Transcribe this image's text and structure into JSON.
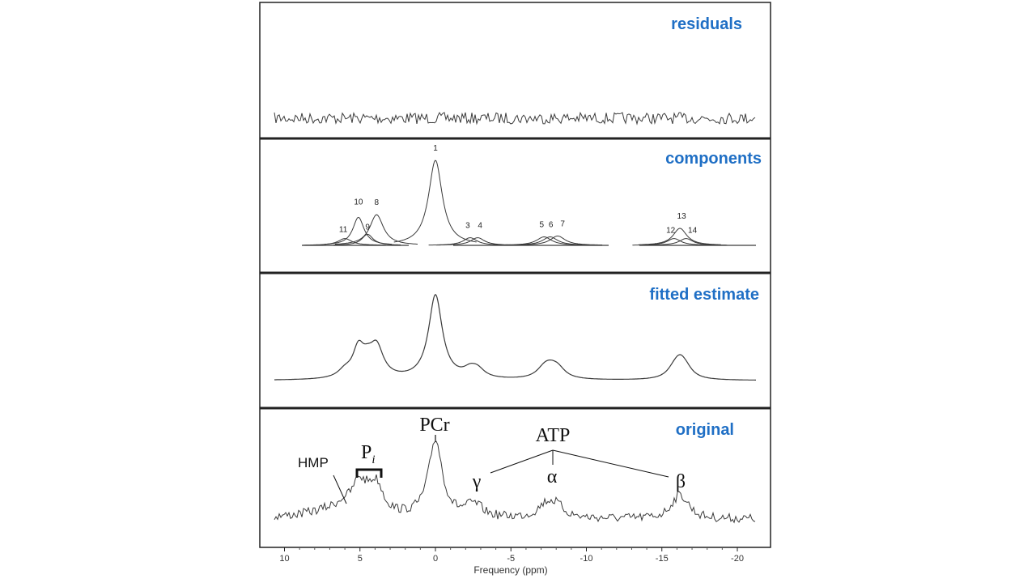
{
  "chart_data": {
    "type": "line",
    "x_axis": {
      "label": "Frequency (ppm)",
      "range": [
        11,
        -21
      ],
      "reversed": true,
      "ticks": [
        10,
        5,
        0,
        -5,
        -10,
        -15,
        -20
      ],
      "tick_labels": [
        "10",
        "5",
        "0",
        "-5",
        "-10",
        "-15",
        "-20"
      ]
    },
    "panels": [
      {
        "name": "residuals",
        "title": "residuals"
      },
      {
        "name": "components",
        "title": "components",
        "peaks": [
          {
            "label": "1",
            "ppm": 0.0,
            "height": 1.0,
            "width": 0.55
          },
          {
            "label": "3",
            "ppm": -2.3,
            "height": 0.09,
            "width": 0.55
          },
          {
            "label": "4",
            "ppm": -2.8,
            "height": 0.09,
            "width": 0.55
          },
          {
            "label": "5",
            "ppm": -7.2,
            "height": 0.1,
            "width": 0.6
          },
          {
            "label": "6",
            "ppm": -7.6,
            "height": 0.1,
            "width": 0.6
          },
          {
            "label": "7",
            "ppm": -8.1,
            "height": 0.11,
            "width": 0.6
          },
          {
            "label": "8",
            "ppm": 3.9,
            "height": 0.36,
            "width": 0.55
          },
          {
            "label": "9",
            "ppm": 4.5,
            "height": 0.13,
            "width": 0.45
          },
          {
            "label": "10",
            "ppm": 5.1,
            "height": 0.33,
            "width": 0.45
          },
          {
            "label": "11",
            "ppm": 6.0,
            "height": 0.08,
            "width": 0.55
          },
          {
            "label": "12",
            "ppm": -15.8,
            "height": 0.08,
            "width": 0.55
          },
          {
            "label": "13",
            "ppm": -16.2,
            "height": 0.2,
            "width": 0.55
          },
          {
            "label": "14",
            "ppm": -16.6,
            "height": 0.08,
            "width": 0.55
          }
        ]
      },
      {
        "name": "fitted estimate",
        "title": "fitted estimate"
      },
      {
        "name": "original",
        "title": "original",
        "annotations": {
          "hmp": "HMP",
          "pi_main": "P",
          "pi_sub": "i",
          "pcr": "PCr",
          "atp": "ATP",
          "gamma": "γ",
          "alpha": "α",
          "beta": "β"
        }
      }
    ]
  }
}
